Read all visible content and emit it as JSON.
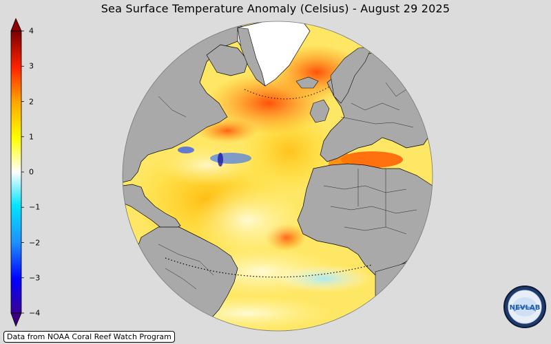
{
  "title": "Sea Surface Temperature Anomaly (Celsius) - August 29 2025",
  "colorbar": {
    "min": -4,
    "max": 4,
    "ticks": [
      {
        "value": 4,
        "label": "4"
      },
      {
        "value": 3,
        "label": "3"
      },
      {
        "value": 2,
        "label": "2"
      },
      {
        "value": 1,
        "label": "1"
      },
      {
        "value": 0,
        "label": "0"
      },
      {
        "value": -1,
        "label": "−1"
      },
      {
        "value": -2,
        "label": "−2"
      },
      {
        "value": -3,
        "label": "−3"
      },
      {
        "value": -4,
        "label": "−4"
      }
    ],
    "colors": [
      "#3a0096",
      "#0000ff",
      "#1e90ff",
      "#00e5ff",
      "#ffffff",
      "#ffff00",
      "#ffa500",
      "#ff2200",
      "#7a0000"
    ]
  },
  "map": {
    "projection": "orthographic",
    "region": "Atlantic Ocean",
    "land_color": "#a9a9a9",
    "outside_color": "#dcdcdc"
  },
  "credit": "Data from NOAA Coral Reef Watch Program",
  "logo": {
    "text": "NEVLAB",
    "icon": "nexlab-logo-icon"
  }
}
